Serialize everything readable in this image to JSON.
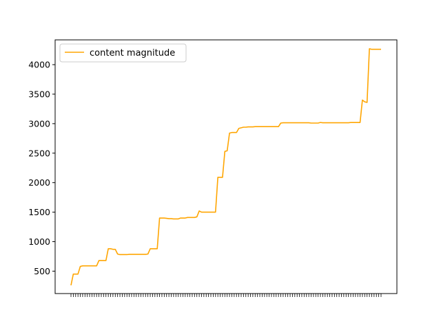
{
  "chart_data": {
    "type": "line",
    "title": "",
    "xlabel": "",
    "ylabel": "",
    "ylim": [
      120,
      4420
    ],
    "yticks": [
      500,
      1000,
      1500,
      2000,
      2500,
      3000,
      3500,
      4000
    ],
    "ytick_labels": [
      "500",
      "1000",
      "1500",
      "2000",
      "2500",
      "3000",
      "3500",
      "4000"
    ],
    "xtick_labels_visible": false,
    "grid": false,
    "legend_position": "top-left",
    "series": [
      {
        "name": "content magnitude",
        "color": "#ffa500",
        "values": [
          260,
          450,
          450,
          450,
          580,
          590,
          590,
          590,
          590,
          590,
          590,
          590,
          680,
          680,
          680,
          680,
          880,
          880,
          870,
          870,
          790,
          780,
          780,
          780,
          780,
          785,
          785,
          785,
          785,
          785,
          785,
          785,
          785,
          790,
          880,
          880,
          880,
          880,
          1400,
          1400,
          1400,
          1395,
          1390,
          1390,
          1385,
          1385,
          1385,
          1400,
          1400,
          1400,
          1410,
          1410,
          1410,
          1410,
          1420,
          1520,
          1500,
          1500,
          1500,
          1500,
          1500,
          1500,
          1500,
          2090,
          2090,
          2090,
          2530,
          2540,
          2840,
          2850,
          2850,
          2850,
          2920,
          2930,
          2940,
          2940,
          2945,
          2945,
          2945,
          2950,
          2950,
          2950,
          2950,
          2950,
          2950,
          2950,
          2950,
          2950,
          2950,
          2950,
          3010,
          3015,
          3015,
          3015,
          3015,
          3015,
          3015,
          3015,
          3015,
          3015,
          3015,
          3015,
          3015,
          3010,
          3010,
          3010,
          3010,
          3020,
          3015,
          3015,
          3015,
          3015,
          3015,
          3015,
          3015,
          3015,
          3015,
          3015,
          3015,
          3015,
          3020,
          3020,
          3020,
          3020,
          3020,
          3400,
          3370,
          3360,
          4270,
          4260,
          4260,
          4260,
          4260,
          4260
        ]
      }
    ]
  }
}
